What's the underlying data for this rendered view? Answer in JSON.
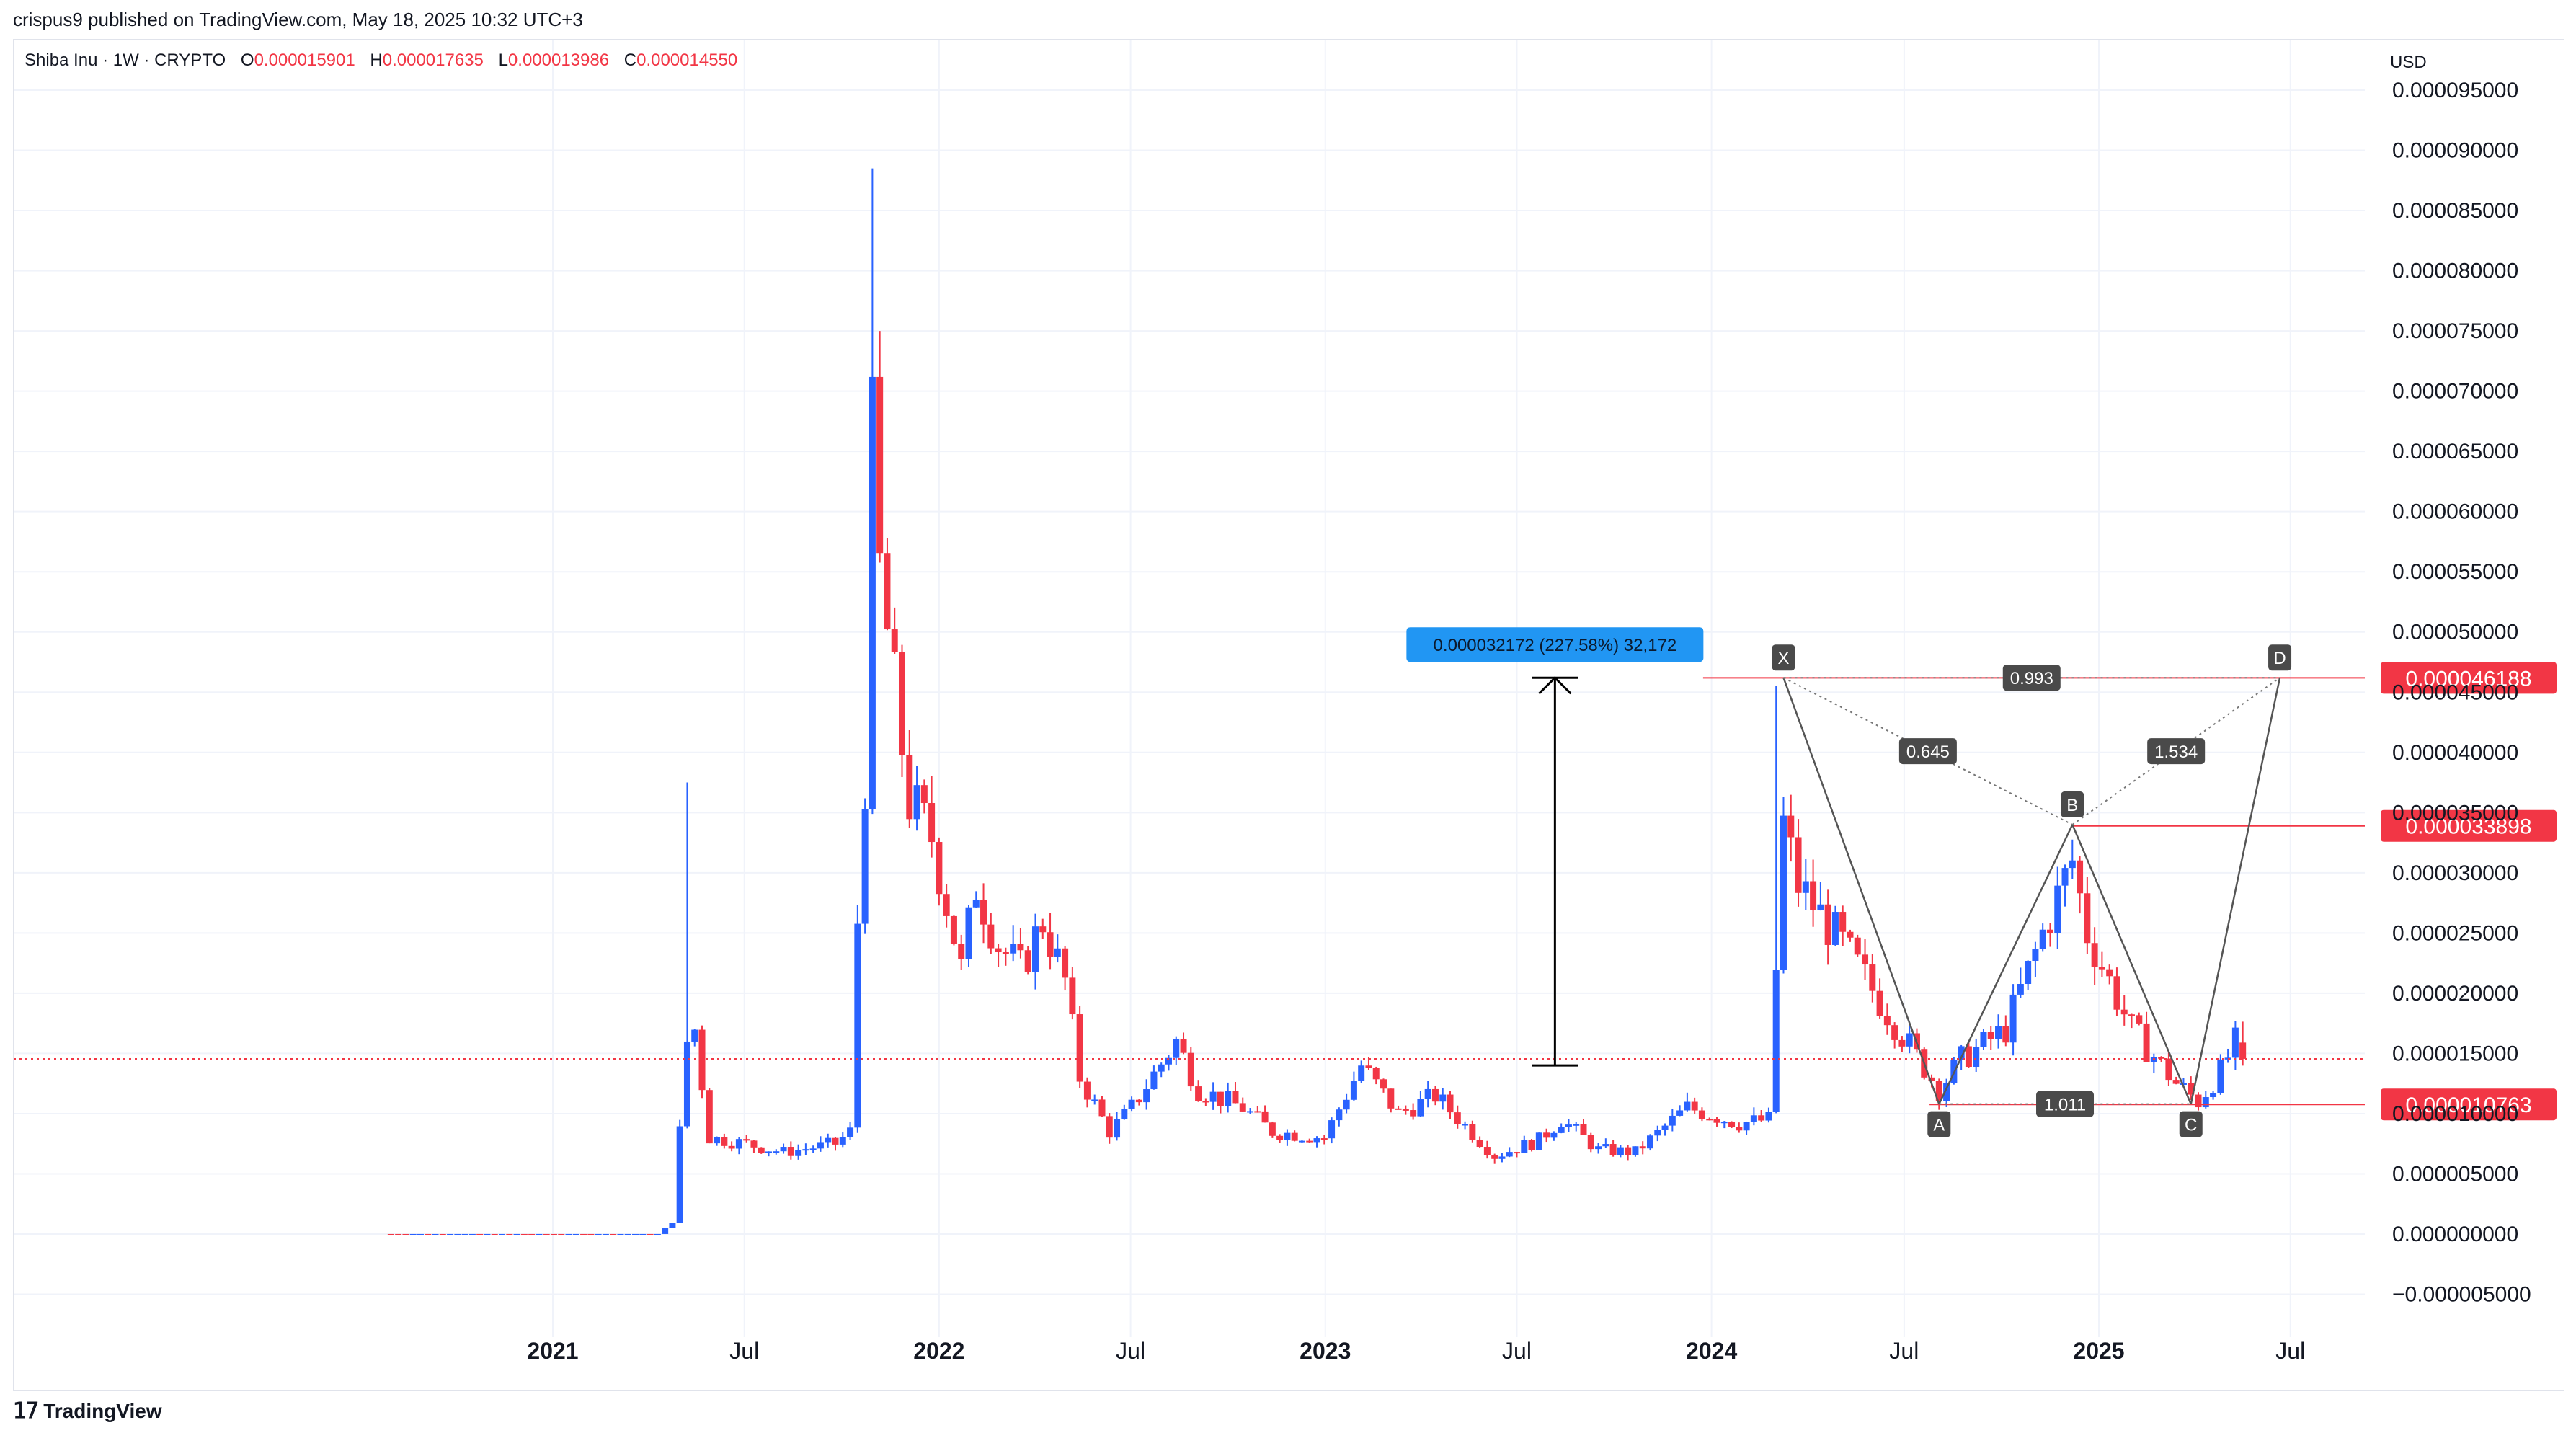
{
  "header": {
    "published": "crispus9 published on TradingView.com, May 18, 2025 10:32 UTC+3"
  },
  "symbol": {
    "name": "Shiba Inu · 1W · CRYPTO",
    "open_label": "O",
    "open": "0.000015901",
    "high_label": "H",
    "high": "0.000017635",
    "low_label": "L",
    "low": "0.000013986",
    "close_label": "C",
    "close": "0.000014550"
  },
  "currency": "USD",
  "footer": {
    "logo_text": "TradingView"
  },
  "colors": {
    "up": "#2962ff",
    "down": "#f23645",
    "grid": "#f0f3fa",
    "measure": "#2196f3"
  },
  "chart_data": {
    "type": "candlestick",
    "ylim": [
      -5e-06,
      9.6e-05
    ],
    "y_ticks": [
      "0.000095000",
      "0.000090000",
      "0.000085000",
      "0.000080000",
      "0.000075000",
      "0.000070000",
      "0.000065000",
      "0.000060000",
      "0.000055000",
      "0.000050000",
      "0.000045000",
      "0.000040000",
      "0.000035000",
      "0.000030000",
      "0.000025000",
      "0.000020000",
      "0.000015000",
      "0.000010000",
      "0.000005000",
      "0.000000000",
      "−0.000005000"
    ],
    "y_tick_values": [
      9.5e-05,
      9e-05,
      8.5e-05,
      8e-05,
      7.5e-05,
      7e-05,
      6.5e-05,
      6e-05,
      5.5e-05,
      5e-05,
      4.5e-05,
      4e-05,
      3.5e-05,
      3e-05,
      2.5e-05,
      2e-05,
      1.5e-05,
      1e-05,
      5e-06,
      0,
      -5e-06
    ],
    "x_ticks": [
      {
        "label": "2021",
        "date": "2021-01-01",
        "bold": true
      },
      {
        "label": "Jul",
        "date": "2021-07-01",
        "bold": false
      },
      {
        "label": "2022",
        "date": "2022-01-01",
        "bold": true
      },
      {
        "label": "Jul",
        "date": "2022-07-01",
        "bold": false
      },
      {
        "label": "2023",
        "date": "2023-01-01",
        "bold": true
      },
      {
        "label": "Jul",
        "date": "2023-07-01",
        "bold": false
      },
      {
        "label": "2024",
        "date": "2024-01-01",
        "bold": true
      },
      {
        "label": "Jul",
        "date": "2024-07-01",
        "bold": false
      },
      {
        "label": "2025",
        "date": "2025-01-01",
        "bold": true
      },
      {
        "label": "Jul",
        "date": "2025-07-01",
        "bold": false
      }
    ],
    "close_anchors": [
      [
        "2020-08-01",
        2.5e-09
      ],
      [
        "2021-04-10",
        2.8e-09
      ],
      [
        "2021-04-24",
        1e-06
      ],
      [
        "2021-05-08",
        1.6e-05
      ],
      [
        "2021-05-15",
        1.7e-05
      ],
      [
        "2021-05-29",
        8e-06
      ],
      [
        "2021-07-03",
        7.5e-06
      ],
      [
        "2021-08-07",
        6.8e-06
      ],
      [
        "2021-09-25",
        7.5e-06
      ],
      [
        "2021-10-09",
        8.5e-06
      ],
      [
        "2021-10-16",
        2.6e-05
      ],
      [
        "2021-10-23",
        3.8e-05
      ],
      [
        "2021-10-30",
        6.6e-05
      ],
      [
        "2021-11-06",
        5.5e-05
      ],
      [
        "2021-11-20",
        4.5e-05
      ],
      [
        "2021-12-04",
        3.6e-05
      ],
      [
        "2021-12-25",
        3.3e-05
      ],
      [
        "2022-01-22",
        2.2e-05
      ],
      [
        "2022-02-05",
        2.9e-05
      ],
      [
        "2022-02-26",
        2.4e-05
      ],
      [
        "2022-03-19",
        2.2e-05
      ],
      [
        "2022-04-09",
        2.6e-05
      ],
      [
        "2022-04-30",
        2.1e-05
      ],
      [
        "2022-05-14",
        1.3e-05
      ],
      [
        "2022-06-11",
        8.5e-06
      ],
      [
        "2022-07-02",
        1.05e-05
      ],
      [
        "2022-08-13",
        1.6e-05
      ],
      [
        "2022-09-03",
        1.2e-05
      ],
      [
        "2022-10-15",
        1.05e-05
      ],
      [
        "2022-11-12",
        8.5e-06
      ],
      [
        "2022-12-31",
        8e-06
      ],
      [
        "2023-02-04",
        1.4e-05
      ],
      [
        "2023-03-11",
        1e-05
      ],
      [
        "2023-04-15",
        1.15e-05
      ],
      [
        "2023-06-10",
        6.5e-06
      ],
      [
        "2023-07-22",
        7.8e-06
      ],
      [
        "2023-08-12",
        9.5e-06
      ],
      [
        "2023-09-16",
        7e-06
      ],
      [
        "2023-10-21",
        6.8e-06
      ],
      [
        "2023-12-09",
        1.05e-05
      ],
      [
        "2024-01-27",
        9.2e-06
      ],
      [
        "2024-02-24",
        9.5e-06
      ],
      [
        "2024-03-02",
        2.2e-05
      ],
      [
        "2024-03-09",
        3.4e-05
      ],
      [
        "2024-03-23",
        2.9e-05
      ],
      [
        "2024-05-04",
        2.4e-05
      ],
      [
        "2024-06-22",
        1.75e-05
      ],
      [
        "2024-08-03",
        1.2e-05
      ],
      [
        "2024-08-24",
        1.45e-05
      ],
      [
        "2024-10-05",
        1.7e-05
      ],
      [
        "2024-11-09",
        2.5e-05
      ],
      [
        "2024-12-07",
        3.1e-05
      ],
      [
        "2024-12-21",
        2.5e-05
      ],
      [
        "2025-02-01",
        1.7e-05
      ],
      [
        "2025-03-15",
        1.25e-05
      ],
      [
        "2025-04-05",
        1.1e-05
      ],
      [
        "2025-04-26",
        1.35e-05
      ],
      [
        "2025-05-10",
        1.59e-05
      ],
      [
        "2025-05-17",
        1.455e-05
      ]
    ],
    "spikes": [
      [
        "2021-05-08",
        3.75e-05
      ],
      [
        "2021-10-30",
        8.85e-05
      ],
      [
        "2021-11-06",
        7.5e-05
      ],
      [
        "2024-03-02",
        4.55e-05
      ]
    ],
    "last_candle": {
      "date": "2025-05-17",
      "open": 1.5901e-05,
      "high": 1.7635e-05,
      "low": 1.3986e-05,
      "close": 1.455e-05
    },
    "current_price": 1.455e-05,
    "price_labels": [
      {
        "value": 4.6188e-05,
        "label": "0.000046188",
        "start": "2023-12-24"
      },
      {
        "value": 3.3898e-05,
        "label": "0.000033898",
        "start": "2024-12-07"
      },
      {
        "value": 1.0763e-05,
        "label": "0.000010763",
        "start": "2024-07-25"
      }
    ],
    "measure": {
      "date": "2023-08-06",
      "from": 1.4e-05,
      "to": 4.62e-05,
      "label": "0.000032172 (227.58%) 32,172"
    },
    "harmonic": {
      "points": [
        {
          "name": "X",
          "date": "2024-03-09",
          "value": 4.62e-05,
          "pos": "above"
        },
        {
          "name": "A",
          "date": "2024-08-03",
          "value": 1.08e-05,
          "pos": "below"
        },
        {
          "name": "B",
          "date": "2024-12-07",
          "value": 3.4e-05,
          "pos": "above"
        },
        {
          "name": "C",
          "date": "2025-03-29",
          "value": 1.08e-05,
          "pos": "below"
        },
        {
          "name": "D",
          "date": "2025-06-21",
          "value": 4.62e-05,
          "pos": "above"
        }
      ],
      "ratios": [
        {
          "label": "0.645",
          "from": "X",
          "to": "B"
        },
        {
          "label": "1.534",
          "from": "B",
          "to": "D"
        },
        {
          "label": "0.993",
          "from": "X",
          "to": "D"
        },
        {
          "label": "1.011",
          "from": "A",
          "to": "C"
        }
      ]
    }
  }
}
